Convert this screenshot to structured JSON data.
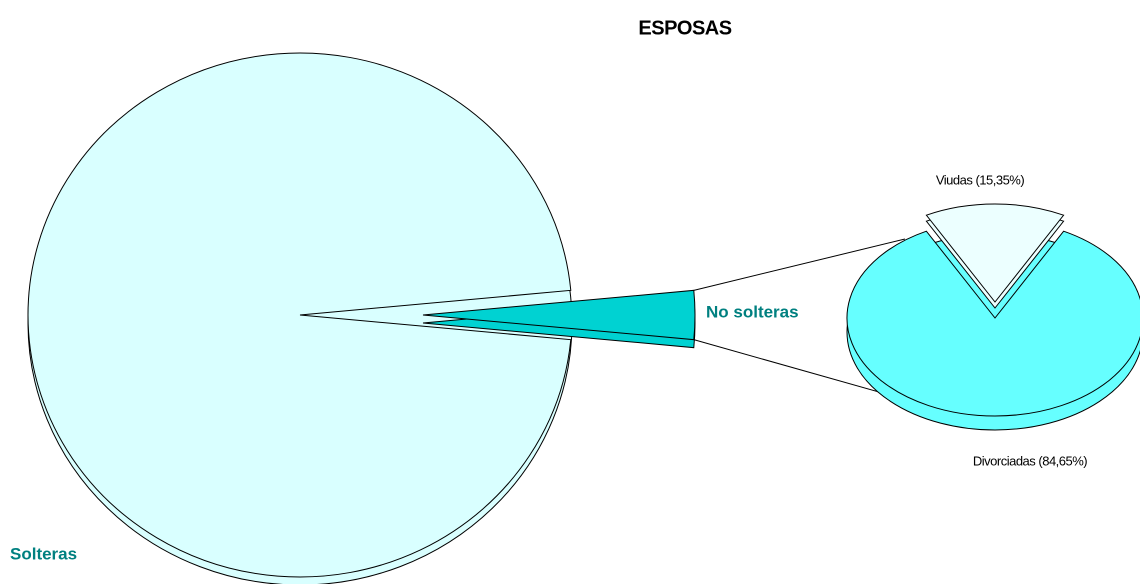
{
  "chart_data": {
    "type": "pie-of-pie",
    "title": "ESPOSAS",
    "categories": [
      "Solteras",
      "No solteras"
    ],
    "values": [
      97,
      3
    ],
    "colors": [
      "#d9ffff",
      "#00d2d2"
    ],
    "secondary": {
      "values": [
        15.35,
        84.65
      ],
      "value_labels": [
        "Viudas (15,35%)",
        "Divorciadas (84,65%)"
      ],
      "colors": [
        "#ecffff",
        "#66ffff"
      ]
    }
  }
}
